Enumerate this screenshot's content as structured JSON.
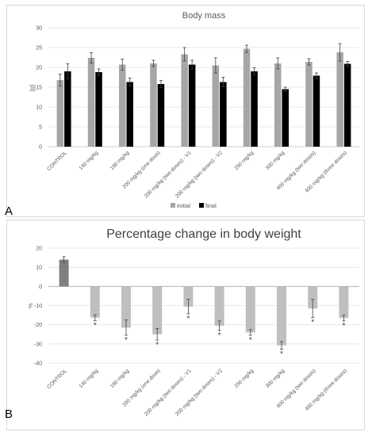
{
  "figure_labels": {
    "a": "A",
    "b": "B"
  },
  "chart_data": [
    {
      "type": "bar",
      "title": "Body mass",
      "xlabel": "",
      "ylabel": "[g]",
      "ylim": [
        0,
        30
      ],
      "yticks": [
        0,
        5,
        10,
        15,
        20,
        25,
        30
      ],
      "grid": true,
      "legend_position": "bottom",
      "categories": [
        "CONTROL",
        "140 mg/kg",
        "160 mg/kg",
        "200 mg/kg (one dose)",
        "200 mg/kg (two doses) - V1",
        "200 mg/kg (two doses) - V2",
        "250 mg/kg",
        "300 mg/kg",
        "400 mg/kg (two doses)",
        "400 mg/kg (three doses)"
      ],
      "series": [
        {
          "name": "initial",
          "color": "#a6a6a6",
          "values": [
            16.8,
            22.4,
            20.7,
            21.0,
            23.3,
            20.5,
            24.7,
            21.0,
            21.4,
            23.8
          ],
          "errors": [
            1.5,
            1.3,
            1.4,
            0.8,
            1.7,
            1.9,
            0.9,
            1.4,
            0.8,
            2.2
          ]
        },
        {
          "name": "final",
          "color": "#000000",
          "values": [
            19.0,
            18.8,
            16.3,
            15.8,
            20.7,
            16.3,
            19.0,
            14.5,
            17.9,
            20.9
          ],
          "errors": [
            1.9,
            0.8,
            1.0,
            0.9,
            1.1,
            1.2,
            0.9,
            0.5,
            0.7,
            0.6
          ]
        }
      ]
    },
    {
      "type": "bar",
      "title": "Percentage change in body weight",
      "xlabel": "",
      "ylabel": "%",
      "ylim": [
        -40,
        20
      ],
      "yticks": [
        -40,
        -30,
        -20,
        -10,
        0,
        10,
        20
      ],
      "grid": true,
      "categories": [
        "CONTROL",
        "140 mg/kg",
        "160 mg/kg",
        "200 mg/kg (one dose)",
        "200 mg/kg (two doses) - V1",
        "200 mg/kg (two doses) - V2",
        "250 mg/kg",
        "300 mg/kg",
        "400 mg/kg (two doses)",
        "400 mg/kg (three doses)"
      ],
      "values": [
        14.0,
        -16.3,
        -21.5,
        -25.0,
        -10.5,
        -20.5,
        -24.0,
        -30.8,
        -11.5,
        -16.5
      ],
      "errors": [
        1.5,
        1.5,
        4.0,
        3.0,
        3.8,
        2.5,
        1.5,
        2.0,
        4.7,
        1.5
      ],
      "colors": [
        "#7f7f7f",
        "#bfbfbf",
        "#bfbfbf",
        "#bfbfbf",
        "#bfbfbf",
        "#bfbfbf",
        "#bfbfbf",
        "#bfbfbf",
        "#bfbfbf",
        "#bfbfbf"
      ],
      "significance_marks": [
        "",
        "*",
        "*",
        "*",
        "*",
        "*",
        "*",
        "*",
        "*",
        "*"
      ]
    }
  ]
}
